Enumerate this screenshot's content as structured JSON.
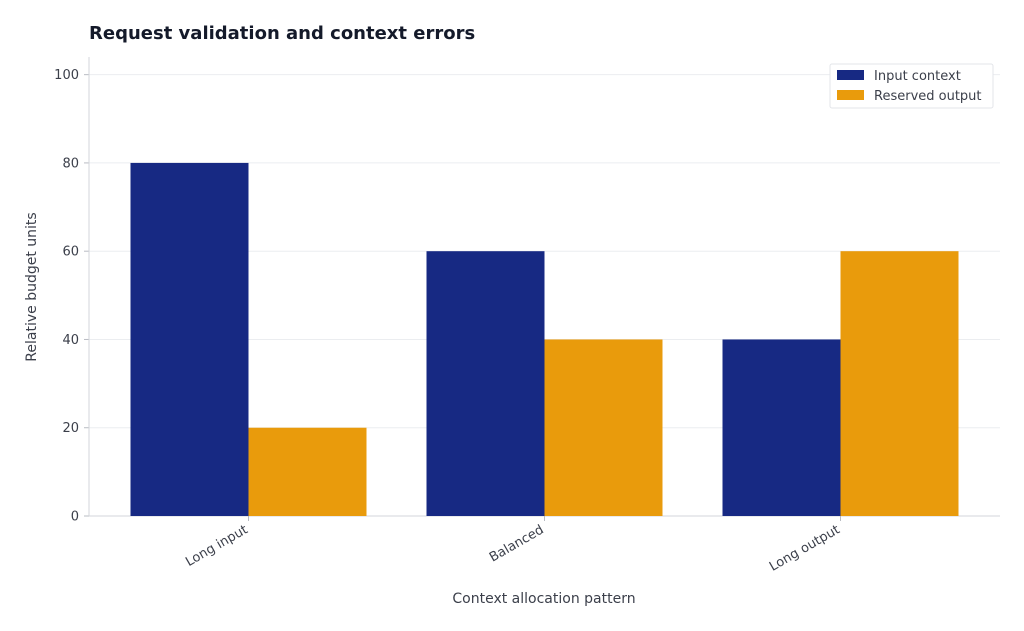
{
  "chart_data": {
    "type": "bar",
    "title": "Request validation and context errors",
    "xlabel": "Context allocation pattern",
    "ylabel": "Relative budget units",
    "categories": [
      "Long input",
      "Balanced",
      "Long output"
    ],
    "series": [
      {
        "name": "Input context",
        "values": [
          80,
          60,
          40
        ],
        "color": "#172983"
      },
      {
        "name": "Reserved output",
        "values": [
          20,
          40,
          60
        ],
        "color": "#e99b0c"
      }
    ],
    "ylim": [
      0,
      104
    ],
    "yticks": [
      0,
      20,
      40,
      60,
      80,
      100
    ],
    "grid": true,
    "legend_position": "top-right"
  }
}
